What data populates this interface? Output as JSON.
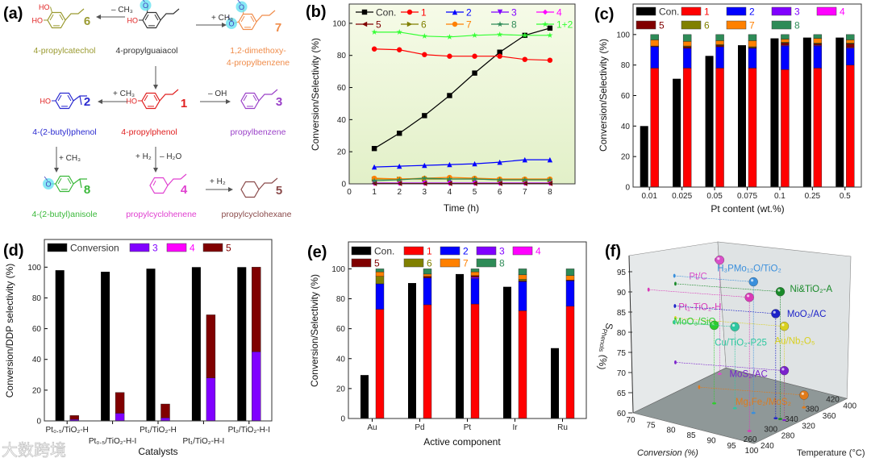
{
  "panels": {
    "a": "(a)",
    "b": "(b)",
    "c": "(c)",
    "d": "(d)",
    "e": "(e)",
    "f": "(f)"
  },
  "watermark": "大数跨境",
  "scheme": {
    "atoms": {
      "hydroxyl": "HO",
      "oxygen": "O"
    },
    "molecules": [
      {
        "id": "6",
        "number": "6",
        "name": "4-propylcatechol",
        "color": "#9a9a30"
      },
      {
        "id": "guaiacol",
        "number": "",
        "name": "4-propylguaiacol",
        "color": "#333333"
      },
      {
        "id": "7",
        "number": "7",
        "name": "1,2-dimethoxy-",
        "name2": "4-propylbenzene",
        "color": "#f08c4a"
      },
      {
        "id": "2",
        "number": "2",
        "name": "4-(2-butyl)phenol",
        "color": "#2a2ad0"
      },
      {
        "id": "1",
        "number": "1",
        "name": "4-propylphenol",
        "color": "#e02020"
      },
      {
        "id": "3",
        "number": "3",
        "name": "propylbenzene",
        "color": "#9a40c8"
      },
      {
        "id": "8",
        "number": "8",
        "name": "4-(2-butyl)anisole",
        "color": "#3ab83a"
      },
      {
        "id": "4",
        "number": "4",
        "name": "propylcyclohenene",
        "color": "#e040d0"
      },
      {
        "id": "5",
        "number": "5",
        "name": "propylcyclohexane",
        "color": "#8a4a4a"
      }
    ],
    "arrows": [
      {
        "from": "guaiacol",
        "to": "6",
        "label": "– CH₃"
      },
      {
        "from": "guaiacol",
        "to": "7",
        "label": "+ CH₃"
      },
      {
        "from": "guaiacol",
        "to": "1",
        "label": ""
      },
      {
        "from": "1",
        "to": "2",
        "label": "+ CH₃"
      },
      {
        "from": "1",
        "to": "3",
        "label": "– OH"
      },
      {
        "from": "2",
        "to": "8",
        "label": "+ CH₃"
      },
      {
        "from": "1",
        "to": "4",
        "label": "+ H₂",
        "label2": "– H₂O"
      },
      {
        "from": "4",
        "to": "5",
        "label": "+ H₂"
      }
    ]
  },
  "chart_data": [
    {
      "type": "line",
      "panel": "b",
      "title": "",
      "xlabel": "Time (h)",
      "ylabel": "Conversion/Selectivity (%)",
      "xlim": [
        0,
        9
      ],
      "ylim": [
        0,
        112
      ],
      "grid": false,
      "legend": "top",
      "xticks": [
        "0",
        "1",
        "2",
        "3",
        "4",
        "5",
        "6",
        "7",
        "8"
      ],
      "yticks": [
        "0",
        "20",
        "40",
        "60",
        "80",
        "100"
      ],
      "x": [
        1,
        2,
        3,
        4,
        5,
        6,
        7,
        8
      ],
      "series": [
        {
          "name": "Con.",
          "color": "#000000",
          "label_color": "#333333",
          "marker": "square",
          "values": [
            22,
            31.5,
            42.5,
            55,
            69,
            82,
            92.5,
            97
          ]
        },
        {
          "name": "1",
          "color": "#ff0000",
          "marker": "circle",
          "values": [
            84,
            83.5,
            80.5,
            79.5,
            79.5,
            79.5,
            77.5,
            77
          ]
        },
        {
          "name": "2",
          "color": "#0000ff",
          "marker": "tri-up",
          "values": [
            10.5,
            11,
            11.5,
            12,
            12.5,
            13.5,
            15,
            15
          ]
        },
        {
          "name": "3",
          "color": "#8000ff",
          "marker": "tri-down",
          "values": [
            0.5,
            0.5,
            0.5,
            0.5,
            0.5,
            0.5,
            0.5,
            0.5
          ]
        },
        {
          "name": "4",
          "color": "#ff00ff",
          "marker": "diamond",
          "values": [
            0.3,
            0.3,
            0.3,
            0.3,
            0.3,
            0.3,
            0.3,
            0.3
          ]
        },
        {
          "name": "5",
          "color": "#800000",
          "marker": "tri-left",
          "values": [
            0.2,
            0.2,
            0.2,
            0.2,
            0.2,
            0.2,
            0.2,
            0.2
          ]
        },
        {
          "name": "6",
          "color": "#808000",
          "marker": "tri-right",
          "values": [
            3,
            3,
            3,
            3,
            3,
            2.5,
            2.5,
            2.5
          ]
        },
        {
          "name": "7",
          "color": "#ff8000",
          "marker": "circle",
          "values": [
            3.5,
            3,
            3.5,
            4,
            3.5,
            3,
            3,
            3
          ]
        },
        {
          "name": "8",
          "color": "#2e8b57",
          "marker": "star",
          "values": [
            2,
            2.5,
            3.5,
            3,
            3,
            2.5,
            2.5,
            2.5
          ]
        },
        {
          "name": "1+2",
          "color": "#33ff33",
          "marker": "star",
          "values": [
            94.5,
            94.5,
            92,
            91.5,
            92.5,
            93,
            92.5,
            92.5
          ]
        }
      ]
    },
    {
      "type": "bar",
      "panel": "c",
      "title": "",
      "xlabel": "Pt  content (wt.%)",
      "ylabel": "Conversion/Selectivity (%)",
      "ylim": [
        0,
        120
      ],
      "legend": "top",
      "yticks": [
        "0",
        "20",
        "40",
        "60",
        "80",
        "100"
      ],
      "categories": [
        "0.01",
        "0.025",
        "0.05",
        "0.075",
        "0.1",
        "0.25",
        "0.5"
      ],
      "conversion": {
        "name": "Con.",
        "color": "#000000",
        "label_color": "#333333",
        "values": [
          40,
          71,
          86,
          93,
          97.5,
          98,
          98
        ]
      },
      "stack": [
        {
          "name": "1",
          "color": "#ff0000",
          "values": [
            78,
            78,
            78,
            78,
            77,
            78,
            80
          ]
        },
        {
          "name": "2",
          "color": "#0000ff",
          "values": [
            14,
            13,
            14,
            13,
            15.5,
            14.5,
            11
          ]
        },
        {
          "name": "3",
          "color": "#8000ff",
          "values": [
            0,
            0,
            0,
            0,
            0.5,
            0.5,
            0.5
          ]
        },
        {
          "name": "4",
          "color": "#ff00ff",
          "values": [
            0,
            0,
            0,
            0,
            0,
            0,
            0
          ]
        },
        {
          "name": "5",
          "color": "#800000",
          "values": [
            0.5,
            1,
            1,
            0.5,
            1.5,
            1,
            2.5
          ]
        },
        {
          "name": "6",
          "color": "#808000",
          "values": [
            0,
            0.5,
            0.5,
            0.5,
            0.5,
            0.5,
            0.5
          ]
        },
        {
          "name": "7",
          "color": "#ff8000",
          "values": [
            4,
            3,
            2.5,
            4,
            2,
            3,
            2
          ]
        },
        {
          "name": "8",
          "color": "#2e8b57",
          "values": [
            3.5,
            4.5,
            4,
            4,
            3,
            2.5,
            3.5
          ]
        }
      ]
    },
    {
      "type": "bar",
      "panel": "d",
      "title": "",
      "xlabel": "Catalysts",
      "ylabel": "Conversion/DDP selectivity (%)",
      "ylim": [
        0,
        118
      ],
      "legend": "top",
      "yticks": [
        "0",
        "20",
        "40",
        "60",
        "80",
        "100"
      ],
      "categories": [
        "Pt₀.₅/TiO₂-H",
        "Pt₀.₅/TiO₂-H-I",
        "Pt₁/TiO₂-H",
        "Pt₁/TiO₂-H-I",
        "Pt₂/TiO₂-H-I"
      ],
      "conversion": {
        "name": "Conversion",
        "color": "#000000",
        "label_color": "#333333",
        "values": [
          98,
          97,
          99,
          100,
          100
        ]
      },
      "stack": [
        {
          "name": "3",
          "color": "#8000ff",
          "values": [
            1,
            5,
            2,
            28,
            45
          ]
        },
        {
          "name": "4",
          "color": "#ff00ff",
          "values": [
            0,
            0,
            0,
            0,
            0
          ]
        },
        {
          "name": "5",
          "color": "#800000",
          "values": [
            2.5,
            13.5,
            9,
            41,
            55
          ]
        }
      ]
    },
    {
      "type": "bar",
      "panel": "e",
      "title": "",
      "xlabel": "Active component",
      "ylabel": "Conversion/Selectivity (%)",
      "ylim": [
        0,
        118
      ],
      "legend": "top",
      "yticks": [
        "0",
        "20",
        "40",
        "60",
        "80",
        "100"
      ],
      "categories": [
        "Au",
        "Pd",
        "Pt",
        "Ir",
        "Ru"
      ],
      "conversion": {
        "name": "Con.",
        "color": "#000000",
        "label_color": "#333333",
        "values": [
          29,
          90.5,
          96.5,
          88,
          47
        ]
      },
      "stack": [
        {
          "name": "1",
          "color": "#ff0000",
          "values": [
            73,
            76,
            76.5,
            72,
            75
          ]
        },
        {
          "name": "2",
          "color": "#0000ff",
          "values": [
            17,
            18,
            17,
            19.5,
            17
          ]
        },
        {
          "name": "3",
          "color": "#8000ff",
          "values": [
            0,
            0,
            1,
            0,
            0
          ]
        },
        {
          "name": "4",
          "color": "#ff00ff",
          "values": [
            0,
            0,
            0,
            0,
            0
          ]
        },
        {
          "name": "5",
          "color": "#800000",
          "values": [
            0,
            1,
            1,
            0.5,
            0.5
          ]
        },
        {
          "name": "6",
          "color": "#808000",
          "values": [
            5,
            0,
            0,
            1,
            0
          ]
        },
        {
          "name": "7",
          "color": "#ff8000",
          "values": [
            3,
            1.5,
            2.5,
            3,
            3
          ]
        },
        {
          "name": "8",
          "color": "#2e8b57",
          "values": [
            2,
            3.5,
            2,
            4,
            4.5
          ]
        }
      ]
    },
    {
      "type": "scatter3d",
      "panel": "f",
      "title": "",
      "xlabel": "Conversion (%)",
      "ylabel": "Temperature (°C)",
      "zlabel_main": "S",
      "zlabel_sub": "Phenols",
      "zlabel_unit": "(%)",
      "xlim": [
        70,
        100
      ],
      "ylim": [
        240,
        420
      ],
      "zlim": [
        60,
        95
      ],
      "xticks": [
        "70",
        "75",
        "80",
        "85",
        "90",
        "95",
        "100"
      ],
      "yticks": [
        "240",
        "260",
        "280",
        "300",
        "320",
        "340",
        "360",
        "380",
        "400",
        "420"
      ],
      "zticks": [
        "60",
        "65",
        "70",
        "75",
        "80",
        "85",
        "90",
        "95"
      ],
      "points": [
        {
          "name": "Pt/C",
          "conversion": 71,
          "temperature": 400,
          "selectivity": 95,
          "color": "#d94fc8"
        },
        {
          "name": "H₃PMo₁₂O/TiO₂",
          "conversion": 89.6,
          "temperature": 320,
          "selectivity": 92.5,
          "color": "#3a8fdc"
        },
        {
          "name": "Pt₁-TiO₂-H",
          "conversion": 95,
          "temperature": 270,
          "selectivity": 90,
          "color": "#d93ab8"
        },
        {
          "name": "Ni&TiO₂-A",
          "conversion": 96,
          "temperature": 322,
          "selectivity": 90.5,
          "color": "#1a8a2a"
        },
        {
          "name": "MoO₂/AC",
          "conversion": 95,
          "temperature": 321,
          "selectivity": 85,
          "color": "#1c22c8"
        },
        {
          "name": "Au/Nb₂O₅",
          "conversion": 97,
          "temperature": 322,
          "selectivity": 82,
          "color": "#d8d020"
        },
        {
          "name": "MoO₃/SiO₂",
          "conversion": 80,
          "temperature": 319,
          "selectivity": 81,
          "color": "#2ecc2e"
        },
        {
          "name": "Cu/TiO₂-P25",
          "conversion": 85,
          "temperature": 320,
          "selectivity": 81,
          "color": "#2ec8a0"
        },
        {
          "name": "MoS₂/AC",
          "conversion": 97,
          "temperature": 322,
          "selectivity": 71,
          "color": "#7a22cc"
        },
        {
          "name": "Mg₁Fe₂/MoS₂",
          "conversion": 96,
          "temperature": 368,
          "selectivity": 64,
          "color": "#e07a1a"
        }
      ]
    }
  ]
}
